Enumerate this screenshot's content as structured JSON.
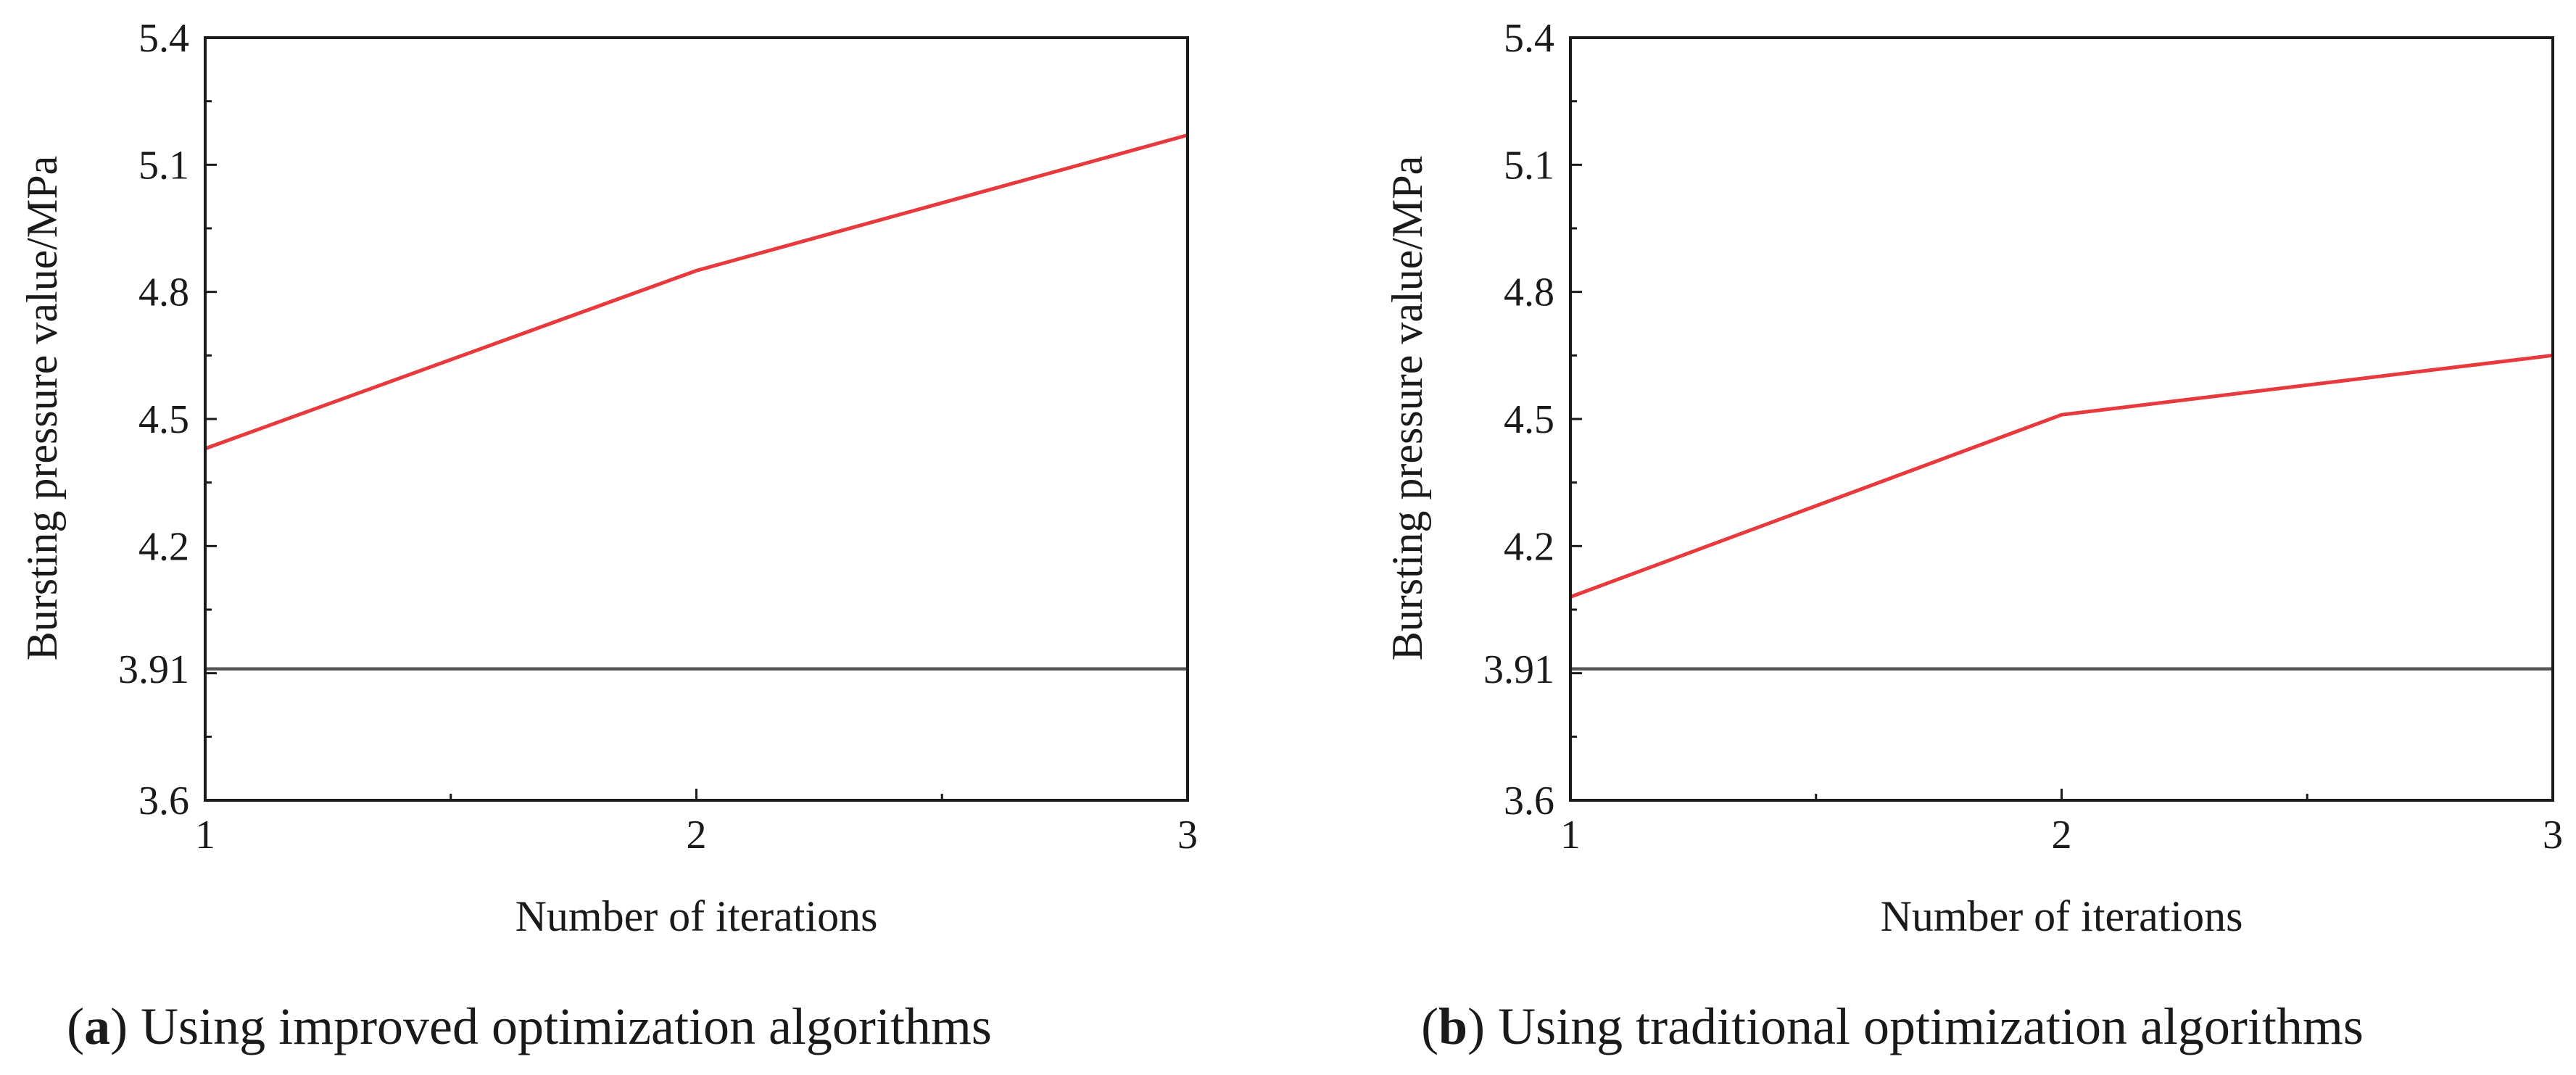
{
  "chart_data": [
    {
      "type": "line",
      "caption_letter": "a",
      "caption_text": "Using improved optimization algorithms",
      "xlabel": "Number of iterations",
      "ylabel": "Bursting pressure value/MPa",
      "x": [
        1,
        2,
        3
      ],
      "xlim": [
        1,
        3
      ],
      "ylim": [
        3.6,
        5.4
      ],
      "xticks": [
        "1",
        "2",
        "3"
      ],
      "yticks": [
        3.6,
        3.91,
        4.2,
        4.5,
        4.8,
        5.1,
        5.4
      ],
      "ytick_labels": [
        "3.6",
        "3.91",
        "4.2",
        "4.5",
        "4.8",
        "5.1",
        "5.4"
      ],
      "grid": false,
      "series": [
        {
          "values": [
            4.43,
            4.85,
            5.17
          ],
          "color": "#e8393c"
        },
        {
          "values": [
            3.91,
            3.91,
            3.91
          ],
          "color": "#555555"
        }
      ]
    },
    {
      "type": "line",
      "caption_letter": "b",
      "caption_text": "Using traditional optimization algorithms",
      "xlabel": "Number of iterations",
      "ylabel": "Bursting pressure value/MPa",
      "x": [
        1,
        2,
        3
      ],
      "xlim": [
        1,
        3
      ],
      "ylim": [
        3.6,
        5.4
      ],
      "xticks": [
        "1",
        "2",
        "3"
      ],
      "yticks": [
        3.6,
        3.91,
        4.2,
        4.5,
        4.8,
        5.1,
        5.4
      ],
      "ytick_labels": [
        "3.6",
        "3.91",
        "4.2",
        "4.5",
        "4.8",
        "5.1",
        "5.4"
      ],
      "grid": false,
      "series": [
        {
          "values": [
            4.08,
            4.51,
            4.65
          ],
          "color": "#e8393c"
        },
        {
          "values": [
            3.91,
            3.91,
            3.91
          ],
          "color": "#555555"
        }
      ]
    }
  ]
}
